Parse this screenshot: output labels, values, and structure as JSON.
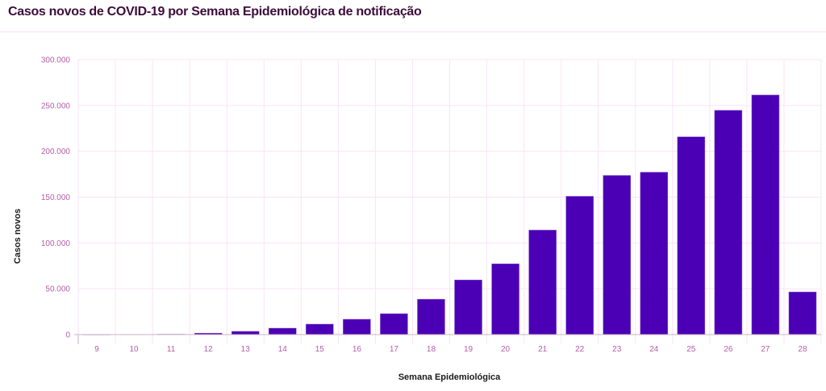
{
  "chart_data": {
    "type": "bar",
    "title": "Casos novos de COVID-19 por Semana Epidemiológica de notificação",
    "xlabel": "Semana Epidemiológica",
    "ylabel": "Casos novos",
    "categories": [
      "9",
      "10",
      "11",
      "12",
      "13",
      "14",
      "15",
      "16",
      "17",
      "18",
      "19",
      "20",
      "21",
      "22",
      "23",
      "24",
      "25",
      "26",
      "27",
      "28"
    ],
    "values": [
      100,
      200,
      400,
      1500,
      3500,
      7000,
      11400,
      16700,
      22800,
      38600,
      59600,
      77200,
      114000,
      150900,
      173700,
      177200,
      215800,
      244700,
      261400,
      46500
    ],
    "ylim": [
      0,
      300000
    ],
    "yticks": [
      0,
      50000,
      100000,
      150000,
      200000,
      250000,
      300000
    ],
    "ytick_labels": [
      "0",
      "50.000",
      "100.000",
      "150.000",
      "200.000",
      "250.000",
      "300.000"
    ],
    "grid": true,
    "colors": {
      "bar": "#4b00b5",
      "grid": "#fbe3f7",
      "tick": "#b35ea8",
      "title": "#3d0d3a"
    }
  }
}
